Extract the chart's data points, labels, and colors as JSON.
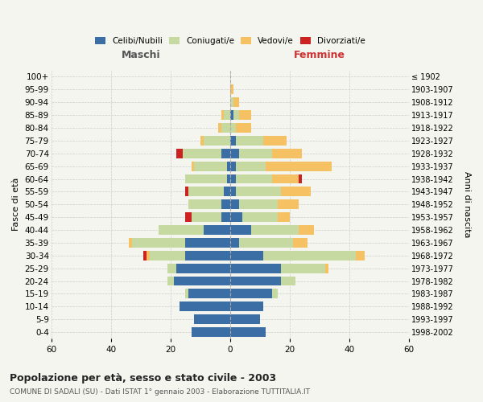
{
  "age_groups": [
    "0-4",
    "5-9",
    "10-14",
    "15-19",
    "20-24",
    "25-29",
    "30-34",
    "35-39",
    "40-44",
    "45-49",
    "50-54",
    "55-59",
    "60-64",
    "65-69",
    "70-74",
    "75-79",
    "80-84",
    "85-89",
    "90-94",
    "95-99",
    "100+"
  ],
  "birth_years": [
    "1998-2002",
    "1993-1997",
    "1988-1992",
    "1983-1987",
    "1978-1982",
    "1973-1977",
    "1968-1972",
    "1963-1967",
    "1958-1962",
    "1953-1957",
    "1948-1952",
    "1943-1947",
    "1938-1942",
    "1933-1937",
    "1928-1932",
    "1923-1927",
    "1918-1922",
    "1913-1917",
    "1908-1912",
    "1903-1907",
    "≤ 1902"
  ],
  "male": {
    "celibi": [
      13,
      12,
      17,
      14,
      19,
      18,
      15,
      15,
      9,
      3,
      3,
      2,
      1,
      1,
      3,
      0,
      0,
      0,
      0,
      0,
      0
    ],
    "coniugati": [
      0,
      0,
      0,
      1,
      2,
      3,
      12,
      18,
      15,
      10,
      11,
      12,
      14,
      11,
      13,
      9,
      3,
      2,
      0,
      0,
      0
    ],
    "vedovi": [
      0,
      0,
      0,
      0,
      0,
      0,
      1,
      1,
      0,
      0,
      0,
      0,
      0,
      1,
      0,
      1,
      1,
      1,
      0,
      0,
      0
    ],
    "divorziati": [
      0,
      0,
      0,
      0,
      0,
      0,
      1,
      0,
      0,
      2,
      0,
      1,
      0,
      0,
      2,
      0,
      0,
      0,
      0,
      0,
      0
    ]
  },
  "female": {
    "nubili": [
      12,
      10,
      11,
      14,
      17,
      17,
      11,
      3,
      7,
      4,
      3,
      2,
      2,
      2,
      3,
      2,
      0,
      1,
      0,
      0,
      0
    ],
    "coniugate": [
      0,
      0,
      0,
      2,
      5,
      15,
      31,
      18,
      16,
      12,
      13,
      15,
      12,
      10,
      11,
      9,
      2,
      2,
      1,
      0,
      0
    ],
    "vedove": [
      0,
      0,
      0,
      0,
      0,
      1,
      3,
      5,
      5,
      4,
      7,
      10,
      9,
      22,
      10,
      8,
      5,
      4,
      2,
      1,
      0
    ],
    "divorziate": [
      0,
      0,
      0,
      0,
      0,
      0,
      0,
      0,
      0,
      0,
      0,
      0,
      1,
      0,
      0,
      0,
      0,
      0,
      0,
      0,
      0
    ]
  },
  "colors": {
    "celibi_nubili": "#3a6ea5",
    "coniugati": "#c5d9a0",
    "vedovi": "#f5c162",
    "divorziati": "#cc2222"
  },
  "xlim": 60,
  "title": "Popolazione per età, sesso e stato civile - 2003",
  "subtitle": "COMUNE DI SADALI (SU) - Dati ISTAT 1° gennaio 2003 - Elaborazione TUTTITALIA.IT",
  "ylabel": "Fasce di età",
  "ylabel_right": "Anni di nascita",
  "xlabel_left": "Maschi",
  "xlabel_right": "Femmine",
  "bg_color": "#f5f5f0",
  "grid_color": "#cccccc"
}
